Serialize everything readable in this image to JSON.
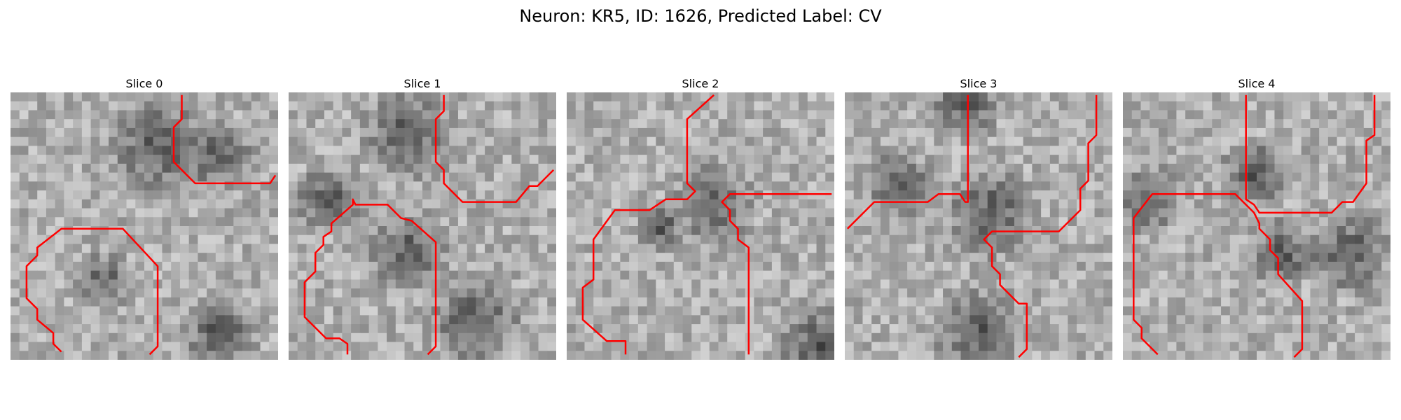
{
  "figure": {
    "title": "Neuron: KR5, ID: 1626, Predicted Label: CV"
  },
  "slices": [
    {
      "label": "Slice 0",
      "overlay_color": "#ff0000",
      "seed": 11,
      "dark_blobs": [
        [
          0.55,
          0.2,
          0.22
        ],
        [
          0.78,
          0.24,
          0.15
        ],
        [
          0.35,
          0.7,
          0.12
        ],
        [
          0.78,
          0.9,
          0.16
        ]
      ],
      "outline": [
        [
          0.64,
          0.01
        ],
        [
          0.64,
          0.1
        ],
        [
          0.61,
          0.13
        ],
        [
          0.61,
          0.26
        ],
        [
          0.69,
          0.34
        ],
        [
          0.97,
          0.34
        ],
        [
          0.99,
          0.31
        ]
      ],
      "outline2": [
        [
          0.19,
          0.97
        ],
        [
          0.16,
          0.94
        ],
        [
          0.16,
          0.9
        ],
        [
          0.1,
          0.85
        ],
        [
          0.1,
          0.81
        ],
        [
          0.06,
          0.77
        ],
        [
          0.06,
          0.65
        ],
        [
          0.1,
          0.61
        ],
        [
          0.1,
          0.58
        ],
        [
          0.19,
          0.51
        ],
        [
          0.42,
          0.51
        ],
        [
          0.55,
          0.65
        ],
        [
          0.55,
          0.95
        ],
        [
          0.52,
          0.98
        ]
      ]
    },
    {
      "label": "Slice 1",
      "overlay_color": "#ff0000",
      "seed": 23,
      "dark_blobs": [
        [
          0.45,
          0.15,
          0.2
        ],
        [
          0.45,
          0.6,
          0.18
        ],
        [
          0.15,
          0.4,
          0.15
        ],
        [
          0.7,
          0.85,
          0.2
        ]
      ],
      "outline": [
        [
          0.58,
          0.01
        ],
        [
          0.58,
          0.07
        ],
        [
          0.55,
          0.1
        ],
        [
          0.55,
          0.26
        ],
        [
          0.58,
          0.29
        ],
        [
          0.58,
          0.34
        ],
        [
          0.65,
          0.41
        ],
        [
          0.85,
          0.41
        ],
        [
          0.9,
          0.35
        ],
        [
          0.93,
          0.35
        ],
        [
          0.99,
          0.29
        ]
      ],
      "outline2": [
        [
          0.22,
          0.98
        ],
        [
          0.22,
          0.94
        ],
        [
          0.19,
          0.92
        ],
        [
          0.14,
          0.92
        ],
        [
          0.06,
          0.84
        ],
        [
          0.06,
          0.71
        ],
        [
          0.1,
          0.67
        ],
        [
          0.1,
          0.6
        ],
        [
          0.13,
          0.57
        ],
        [
          0.13,
          0.54
        ],
        [
          0.16,
          0.52
        ],
        [
          0.16,
          0.49
        ],
        [
          0.24,
          0.42
        ],
        [
          0.24,
          0.4
        ],
        [
          0.25,
          0.42
        ],
        [
          0.37,
          0.42
        ],
        [
          0.42,
          0.47
        ],
        [
          0.46,
          0.48
        ],
        [
          0.55,
          0.56
        ],
        [
          0.55,
          0.95
        ],
        [
          0.52,
          0.98
        ]
      ]
    },
    {
      "label": "Slice 2",
      "overlay_color": "#ff0000",
      "seed": 37,
      "dark_blobs": [
        [
          0.35,
          0.5,
          0.1
        ],
        [
          0.55,
          0.42,
          0.18
        ],
        [
          0.95,
          0.95,
          0.2
        ]
      ],
      "outline": [
        [
          0.55,
          0.01
        ],
        [
          0.45,
          0.1
        ],
        [
          0.45,
          0.34
        ],
        [
          0.48,
          0.37
        ],
        [
          0.45,
          0.4
        ],
        [
          0.37,
          0.4
        ],
        [
          0.31,
          0.44
        ],
        [
          0.18,
          0.44
        ],
        [
          0.1,
          0.55
        ],
        [
          0.1,
          0.7
        ],
        [
          0.06,
          0.73
        ],
        [
          0.06,
          0.85
        ],
        [
          0.15,
          0.93
        ],
        [
          0.22,
          0.93
        ],
        [
          0.22,
          0.98
        ]
      ],
      "outline2": [
        [
          0.99,
          0.38
        ],
        [
          0.61,
          0.38
        ],
        [
          0.58,
          0.41
        ],
        [
          0.61,
          0.44
        ],
        [
          0.61,
          0.48
        ],
        [
          0.64,
          0.51
        ],
        [
          0.64,
          0.55
        ],
        [
          0.68,
          0.58
        ],
        [
          0.68,
          0.98
        ]
      ]
    },
    {
      "label": "Slice 3",
      "overlay_color": "#ff0000",
      "seed": 53,
      "dark_blobs": [
        [
          0.45,
          0.05,
          0.15
        ],
        [
          0.55,
          0.45,
          0.2
        ],
        [
          0.5,
          0.9,
          0.2
        ],
        [
          0.2,
          0.35,
          0.15
        ]
      ],
      "outline": [
        [
          0.01,
          0.51
        ],
        [
          0.11,
          0.41
        ],
        [
          0.31,
          0.41
        ],
        [
          0.35,
          0.38
        ],
        [
          0.43,
          0.38
        ],
        [
          0.45,
          0.41
        ],
        [
          0.46,
          0.41
        ],
        [
          0.46,
          0.01
        ]
      ],
      "outline2": [
        [
          0.94,
          0.01
        ],
        [
          0.94,
          0.16
        ],
        [
          0.91,
          0.19
        ],
        [
          0.91,
          0.33
        ],
        [
          0.88,
          0.36
        ],
        [
          0.88,
          0.44
        ],
        [
          0.8,
          0.52
        ],
        [
          0.55,
          0.52
        ],
        [
          0.52,
          0.55
        ],
        [
          0.55,
          0.58
        ],
        [
          0.55,
          0.65
        ],
        [
          0.58,
          0.68
        ],
        [
          0.58,
          0.72
        ],
        [
          0.65,
          0.79
        ],
        [
          0.68,
          0.79
        ],
        [
          0.68,
          0.96
        ],
        [
          0.65,
          0.99
        ]
      ]
    },
    {
      "label": "Slice 4",
      "overlay_color": "#ff0000",
      "seed": 71,
      "dark_blobs": [
        [
          0.5,
          0.3,
          0.15
        ],
        [
          0.6,
          0.6,
          0.15
        ],
        [
          0.85,
          0.6,
          0.18
        ],
        [
          0.1,
          0.4,
          0.15
        ]
      ],
      "outline": [
        [
          0.46,
          0.01
        ],
        [
          0.46,
          0.4
        ],
        [
          0.49,
          0.42
        ],
        [
          0.51,
          0.45
        ],
        [
          0.78,
          0.45
        ],
        [
          0.82,
          0.41
        ],
        [
          0.86,
          0.41
        ],
        [
          0.91,
          0.34
        ],
        [
          0.91,
          0.18
        ],
        [
          0.94,
          0.16
        ],
        [
          0.94,
          0.01
        ]
      ],
      "outline2": [
        [
          0.13,
          0.98
        ],
        [
          0.07,
          0.92
        ],
        [
          0.07,
          0.88
        ],
        [
          0.04,
          0.85
        ],
        [
          0.04,
          0.47
        ],
        [
          0.11,
          0.38
        ],
        [
          0.42,
          0.38
        ],
        [
          0.49,
          0.45
        ],
        [
          0.51,
          0.49
        ],
        [
          0.51,
          0.51
        ],
        [
          0.55,
          0.55
        ],
        [
          0.55,
          0.59
        ],
        [
          0.58,
          0.62
        ],
        [
          0.58,
          0.68
        ],
        [
          0.67,
          0.78
        ],
        [
          0.67,
          0.96
        ],
        [
          0.64,
          0.99
        ]
      ]
    }
  ]
}
